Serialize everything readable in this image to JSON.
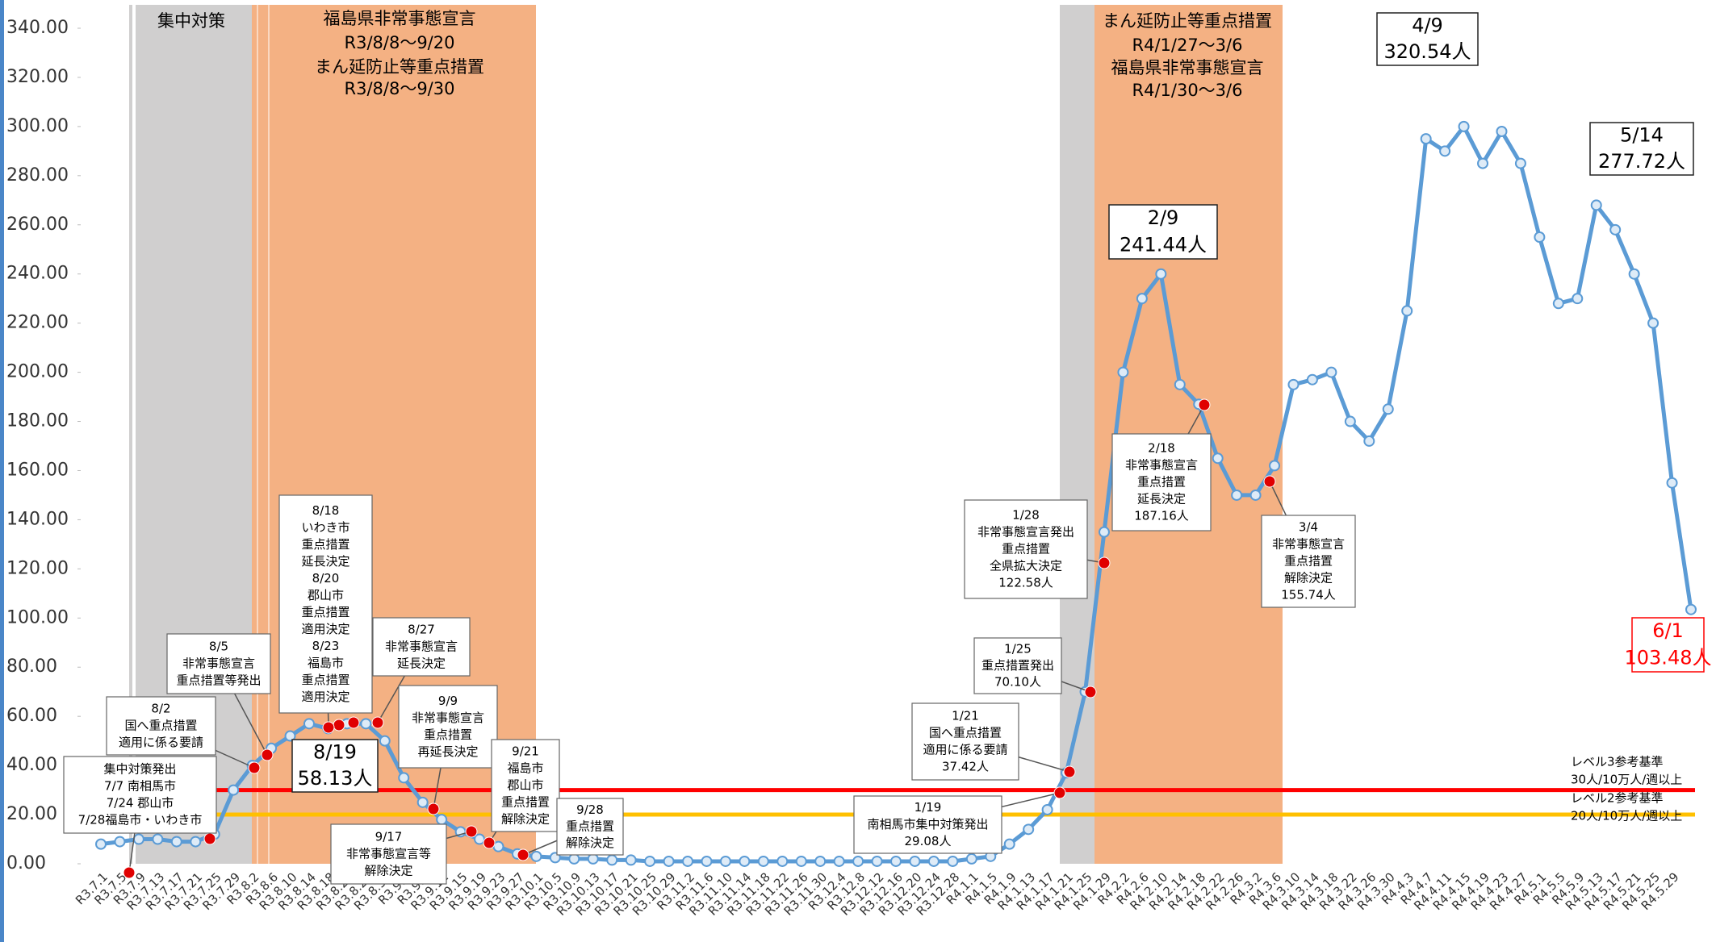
{
  "chart_data": {
    "type": "line",
    "categories": [
      "R3.7.1",
      "R3.7.5",
      "R3.7.9",
      "R3.7.13",
      "R3.7.17",
      "R3.7.21",
      "R3.7.25",
      "R3.7.29",
      "R3.8.2",
      "R3.8.6",
      "R3.8.10",
      "R3.8.14",
      "R3.8.18",
      "R3.8.22",
      "R3.8.26",
      "R3.8.30",
      "R3.9.3",
      "R3.9.7",
      "R3.9.11",
      "R3.9.15",
      "R3.9.19",
      "R3.9.23",
      "R3.9.27",
      "R3.10.1",
      "R3.10.5",
      "R3.10.9",
      "R3.10.13",
      "R3.10.17",
      "R3.10.21",
      "R3.10.25",
      "R3.10.29",
      "R3.11.2",
      "R3.11.6",
      "R3.11.10",
      "R3.11.14",
      "R3.11.18",
      "R3.11.22",
      "R3.11.26",
      "R3.11.30",
      "R3.12.4",
      "R3.12.8",
      "R3.12.12",
      "R3.12.16",
      "R3.12.20",
      "R3.12.24",
      "R3.12.28",
      "R4.1.1",
      "R4.1.5",
      "R4.1.9",
      "R4.1.13",
      "R4.1.17",
      "R4.1.21",
      "R4.1.25",
      "R4.1.29",
      "R4.2.2",
      "R4.2.6",
      "R4.2.10",
      "R4.2.14",
      "R4.2.18",
      "R4.2.22",
      "R4.2.26",
      "R4.3.2",
      "R4.3.6",
      "R4.3.10",
      "R4.3.14",
      "R4.3.18",
      "R4.3.22",
      "R4.3.26",
      "R4.3.30",
      "R4.4.3",
      "R4.4.7",
      "R4.4.11",
      "R4.4.15",
      "R4.4.19",
      "R4.4.23",
      "R4.4.27",
      "R4.5.1",
      "R4.5.5",
      "R4.5.9",
      "R4.5.13",
      "R4.5.17",
      "R4.5.21",
      "R4.5.25",
      "R4.5.29",
      null
    ],
    "values": [
      8,
      9,
      10,
      10,
      9,
      9,
      12,
      30,
      40,
      47,
      52,
      57,
      55,
      57,
      57,
      50,
      35,
      25,
      18,
      13,
      10,
      7,
      4,
      3,
      2.5,
      2,
      2,
      1.5,
      1.5,
      1,
      1,
      1,
      1,
      1,
      1,
      1,
      1,
      1,
      1,
      1,
      1,
      1,
      1,
      1,
      1,
      1,
      2,
      3,
      8,
      14,
      22,
      37,
      70,
      135,
      200,
      230,
      240,
      195,
      187,
      165,
      150,
      150,
      162,
      195,
      197,
      200,
      180,
      172,
      185,
      225,
      295,
      290,
      300,
      285,
      298,
      285,
      255,
      228,
      230,
      268,
      258,
      240,
      220,
      155,
      103.48
    ],
    "color": "#5b9bd5",
    "ylim": [
      0,
      340
    ],
    "yticks": [
      {
        "value": 0,
        "label": "0.00"
      },
      {
        "value": 20,
        "label": "20.00"
      },
      {
        "value": 40,
        "label": "40.00"
      },
      {
        "value": 60,
        "label": "60.00"
      },
      {
        "value": 80,
        "label": "80.00"
      },
      {
        "value": 100,
        "label": "100.00"
      },
      {
        "value": 120,
        "label": "120.00"
      },
      {
        "value": 140,
        "label": "140.00"
      },
      {
        "value": 160,
        "label": "160.00"
      },
      {
        "value": 180,
        "label": "180.00"
      },
      {
        "value": 200,
        "label": "200.00"
      },
      {
        "value": 220,
        "label": "220.00"
      },
      {
        "value": 240,
        "label": "240.00"
      },
      {
        "value": 260,
        "label": "260.00"
      },
      {
        "value": 280,
        "label": "280.00"
      },
      {
        "value": 300,
        "label": "300.00"
      },
      {
        "value": 320,
        "label": "320.00"
      },
      {
        "value": 340,
        "label": "340.00"
      }
    ],
    "reference_lines": [
      {
        "value": 30,
        "color": "#ff0000",
        "label": [
          "レベル3参考基準",
          "30人/10万人/週以上"
        ]
      },
      {
        "value": 20,
        "color": "#ffc000",
        "label": [
          "レベル2参考基準",
          "20人/10万人/週以上"
        ]
      }
    ],
    "band_labels": [
      [
        "集中対策"
      ],
      [
        "福島県非常事態宣言",
        "R3/8/8～9/20",
        "まん延防止等重点措置",
        "R3/8/8～9/30"
      ],
      [
        "まん延防止等重点措置",
        "R4/1/27～3/6",
        "福島県非常事態宣言",
        "R4/1/30～3/6"
      ]
    ],
    "peak_labels": [
      {
        "lines": [
          "2/9",
          "241.44人"
        ],
        "color": "#000000"
      },
      {
        "lines": [
          "4/9",
          "320.54人"
        ],
        "color": "#000000"
      },
      {
        "lines": [
          "5/14",
          "277.72人"
        ],
        "color": "#000000"
      },
      {
        "lines": [
          "6/1",
          "103.48人"
        ],
        "color": "#ff0000"
      },
      {
        "lines": [
          "8/19",
          "58.13人"
        ],
        "color": "#000000"
      }
    ],
    "annotations": [
      [
        "集中対策発出",
        "7/7 南相馬市",
        "7/24  郡山市",
        "7/28福島市・いわき市"
      ],
      [
        "8/2",
        "国へ重点措置",
        "適用に係る要請"
      ],
      [
        "8/5",
        "非常事態宣言",
        "重点措置等発出"
      ],
      [
        "8/18",
        "いわき市",
        "重点措置",
        "延長決定",
        "8/20",
        "郡山市",
        "重点措置",
        "適用決定",
        "8/23",
        "福島市",
        "重点措置",
        "適用決定"
      ],
      [
        "8/27",
        "非常事態宣言",
        "延長決定"
      ],
      [
        "9/9",
        "非常事態宣言",
        "重点措置",
        "再延長決定"
      ],
      [
        "9/17",
        "非常事態宣言等",
        "解除決定"
      ],
      [
        "9/21",
        "福島市",
        "郡山市",
        "重点措置",
        "解除決定"
      ],
      [
        "9/28",
        "重点措置",
        "解除決定"
      ],
      [
        "1/19",
        "南相馬市集中対策発出",
        "29.08人"
      ],
      [
        "1/21",
        "国へ重点措置",
        "適用に係る要請",
        "37.42人"
      ],
      [
        "1/25",
        "重点措置発出",
        "70.10人"
      ],
      [
        "1/28",
        "非常事態宣言発出",
        "重点措置",
        "全県拡大決定",
        "122.58人"
      ],
      [
        "2/18",
        "非常事態宣言",
        "重点措置",
        "延長決定",
        "187.16人"
      ],
      [
        "3/4",
        "非常事態宣言",
        "重点措置",
        "解除決定",
        "155.74人"
      ]
    ]
  }
}
